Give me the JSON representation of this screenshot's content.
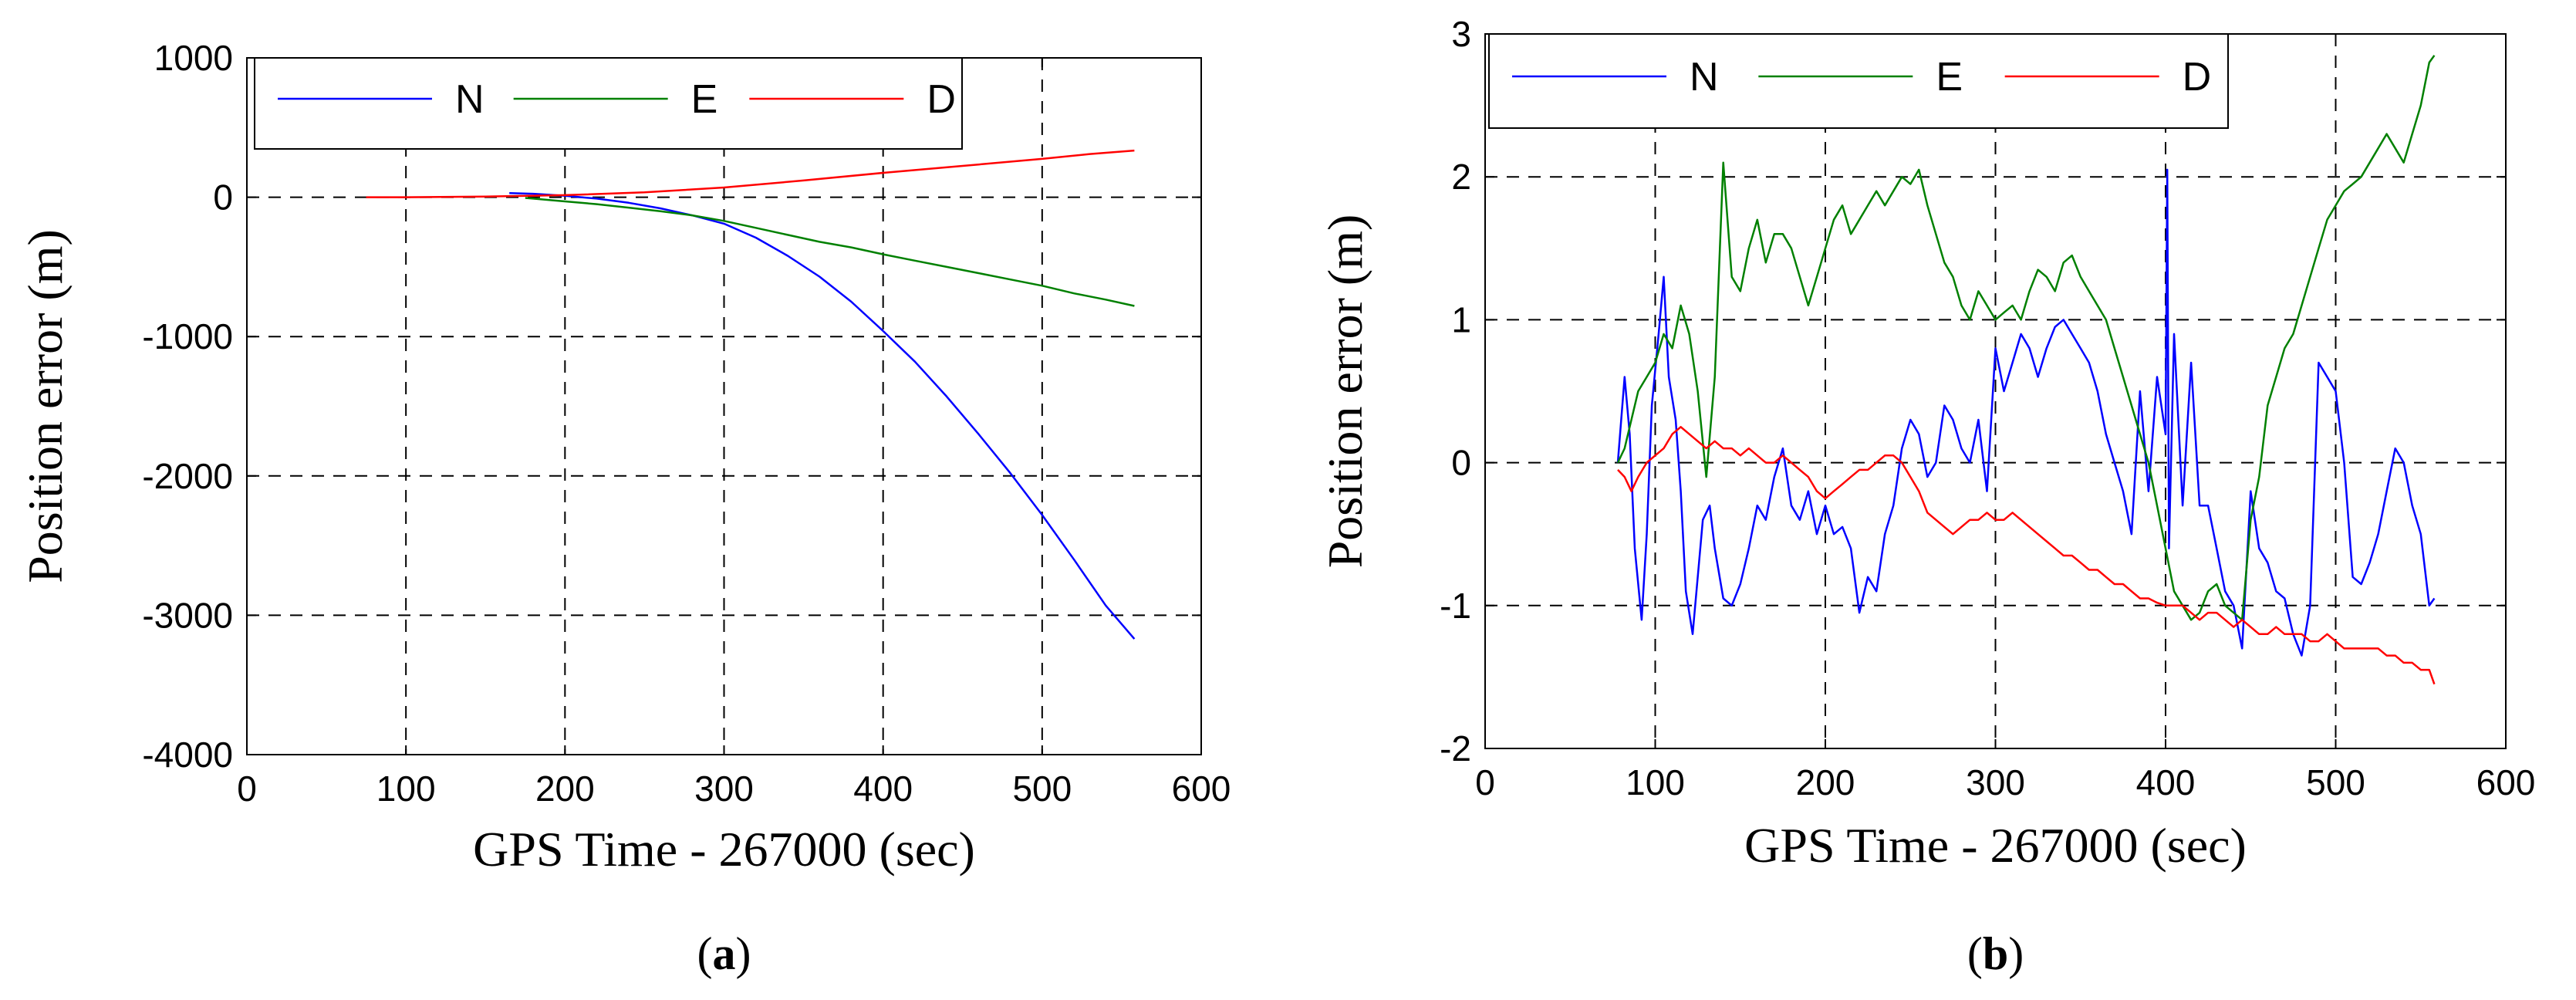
{
  "chart_data": [
    {
      "type": "line",
      "panel": "a",
      "xlabel": "GPS Time - 267000 (sec)",
      "ylabel": "Position error (m)",
      "xlim": [
        0,
        600
      ],
      "ylim": [
        -4000,
        1000
      ],
      "xticks": [
        0,
        100,
        200,
        300,
        400,
        500,
        600
      ],
      "yticks": [
        1000,
        0,
        -1000,
        -2000,
        -3000,
        -4000
      ],
      "grid": true,
      "legend_position": "top",
      "series": [
        {
          "name": "N",
          "color": "#0000ff",
          "x": [
            165,
            180,
            200,
            220,
            240,
            260,
            280,
            300,
            320,
            340,
            360,
            380,
            400,
            420,
            440,
            460,
            480,
            500,
            520,
            540,
            558
          ],
          "values": [
            30,
            25,
            10,
            -10,
            -40,
            -80,
            -130,
            -190,
            -290,
            -420,
            -570,
            -750,
            -960,
            -1180,
            -1430,
            -1700,
            -1980,
            -2280,
            -2600,
            -2930,
            -3170
          ]
        },
        {
          "name": "E",
          "color": "#008000",
          "x": [
            175,
            200,
            220,
            240,
            260,
            280,
            300,
            320,
            340,
            360,
            380,
            400,
            420,
            440,
            460,
            480,
            500,
            520,
            540,
            558
          ],
          "values": [
            -5,
            -30,
            -50,
            -75,
            -100,
            -130,
            -170,
            -220,
            -270,
            -320,
            -360,
            -410,
            -455,
            -500,
            -545,
            -590,
            -635,
            -690,
            -735,
            -780
          ]
        },
        {
          "name": "D",
          "color": "#ff0000",
          "x": [
            75,
            100,
            150,
            200,
            250,
            300,
            350,
            400,
            450,
            500,
            530,
            558
          ],
          "values": [
            0,
            0,
            5,
            15,
            35,
            70,
            120,
            175,
            225,
            275,
            310,
            335
          ]
        }
      ]
    },
    {
      "type": "line",
      "panel": "b",
      "xlabel": "GPS Time - 267000 (sec)",
      "ylabel": "Position error (m)",
      "xlim": [
        0,
        600
      ],
      "ylim": [
        -2,
        3
      ],
      "xticks": [
        0,
        100,
        200,
        300,
        400,
        500,
        600
      ],
      "yticks": [
        3,
        2,
        1,
        0,
        -1,
        -2
      ],
      "grid": true,
      "legend_position": "top",
      "series": [
        {
          "name": "N",
          "color": "#0000ff",
          "x": [
            78,
            82,
            85,
            88,
            92,
            95,
            98,
            102,
            105,
            108,
            112,
            115,
            118,
            122,
            125,
            128,
            132,
            135,
            140,
            145,
            150,
            155,
            160,
            165,
            170,
            175,
            180,
            185,
            190,
            195,
            200,
            205,
            210,
            215,
            220,
            225,
            230,
            235,
            240,
            245,
            250,
            255,
            260,
            265,
            270,
            275,
            280,
            285,
            290,
            295,
            300,
            305,
            310,
            315,
            320,
            325,
            330,
            335,
            340,
            345,
            350,
            355,
            360,
            365,
            370,
            375,
            380,
            385,
            390,
            395,
            400,
            401,
            402,
            405,
            410,
            415,
            420,
            425,
            430,
            435,
            440,
            445,
            450,
            455,
            460,
            465,
            470,
            475,
            480,
            485,
            490,
            495,
            500,
            505,
            510,
            515,
            520,
            525,
            530,
            535,
            540,
            545,
            550,
            555,
            558
          ],
          "values": [
            0.0,
            0.6,
            0.2,
            -0.6,
            -1.1,
            -0.5,
            0.4,
            0.9,
            1.3,
            0.6,
            0.3,
            -0.2,
            -0.9,
            -1.2,
            -0.8,
            -0.4,
            -0.3,
            -0.6,
            -0.95,
            -1.0,
            -0.85,
            -0.6,
            -0.3,
            -0.4,
            -0.1,
            0.1,
            -0.3,
            -0.4,
            -0.2,
            -0.5,
            -0.3,
            -0.5,
            -0.45,
            -0.6,
            -1.05,
            -0.8,
            -0.9,
            -0.5,
            -0.3,
            0.1,
            0.3,
            0.2,
            -0.1,
            0.0,
            0.4,
            0.3,
            0.1,
            0.0,
            0.3,
            -0.2,
            0.8,
            0.5,
            0.7,
            0.9,
            0.8,
            0.6,
            0.8,
            0.95,
            1.0,
            0.9,
            0.8,
            0.7,
            0.5,
            0.2,
            0.0,
            -0.2,
            -0.5,
            0.5,
            -0.2,
            0.6,
            0.2,
            2.05,
            -0.6,
            0.9,
            -0.3,
            0.7,
            -0.3,
            -0.3,
            -0.6,
            -0.9,
            -1.0,
            -1.3,
            -0.2,
            -0.6,
            -0.7,
            -0.9,
            -0.95,
            -1.2,
            -1.35,
            -1.0,
            0.7,
            0.6,
            0.5,
            0.0,
            -0.8,
            -0.85,
            -0.7,
            -0.5,
            -0.2,
            0.1,
            0.0,
            -0.3,
            -0.5,
            -1.0,
            -0.95
          ]
        },
        {
          "name": "E",
          "color": "#008000",
          "x": [
            78,
            82,
            86,
            90,
            95,
            100,
            105,
            110,
            115,
            120,
            125,
            130,
            135,
            138,
            140,
            145,
            150,
            155,
            160,
            165,
            170,
            175,
            180,
            185,
            190,
            195,
            200,
            205,
            210,
            215,
            220,
            225,
            230,
            235,
            240,
            245,
            250,
            255,
            260,
            265,
            270,
            275,
            280,
            285,
            290,
            295,
            300,
            305,
            310,
            315,
            320,
            325,
            330,
            335,
            340,
            345,
            350,
            355,
            360,
            365,
            370,
            375,
            380,
            385,
            390,
            395,
            400,
            405,
            410,
            415,
            420,
            425,
            430,
            435,
            440,
            445,
            450,
            455,
            460,
            465,
            470,
            475,
            480,
            485,
            490,
            495,
            500,
            505,
            510,
            515,
            520,
            525,
            530,
            535,
            540,
            545,
            550,
            555,
            558
          ],
          "values": [
            0.0,
            0.1,
            0.3,
            0.5,
            0.6,
            0.7,
            0.9,
            0.8,
            1.1,
            0.9,
            0.5,
            -0.1,
            0.6,
            1.5,
            2.1,
            1.3,
            1.2,
            1.5,
            1.7,
            1.4,
            1.6,
            1.6,
            1.5,
            1.3,
            1.1,
            1.3,
            1.5,
            1.7,
            1.8,
            1.6,
            1.7,
            1.8,
            1.9,
            1.8,
            1.9,
            2.0,
            1.95,
            2.05,
            1.8,
            1.6,
            1.4,
            1.3,
            1.1,
            1.0,
            1.2,
            1.1,
            1.0,
            1.05,
            1.1,
            1.0,
            1.2,
            1.35,
            1.3,
            1.2,
            1.4,
            1.45,
            1.3,
            1.2,
            1.1,
            1.0,
            0.8,
            0.6,
            0.4,
            0.2,
            0.0,
            -0.3,
            -0.6,
            -0.9,
            -1.0,
            -1.1,
            -1.05,
            -0.9,
            -0.85,
            -1.0,
            -1.05,
            -1.1,
            -0.4,
            -0.1,
            0.4,
            0.6,
            0.8,
            0.9,
            1.1,
            1.3,
            1.5,
            1.7,
            1.8,
            1.9,
            1.95,
            2.0,
            2.1,
            2.2,
            2.3,
            2.2,
            2.1,
            2.3,
            2.5,
            2.8,
            2.85
          ]
        },
        {
          "name": "D",
          "color": "#ff0000",
          "x": [
            78,
            82,
            86,
            90,
            95,
            100,
            105,
            110,
            115,
            120,
            125,
            130,
            135,
            140,
            145,
            150,
            155,
            160,
            165,
            170,
            175,
            180,
            185,
            190,
            195,
            200,
            205,
            210,
            215,
            220,
            225,
            230,
            235,
            240,
            245,
            250,
            255,
            260,
            265,
            270,
            275,
            280,
            285,
            290,
            295,
            300,
            305,
            310,
            315,
            320,
            325,
            330,
            335,
            340,
            345,
            350,
            355,
            360,
            365,
            370,
            375,
            380,
            385,
            390,
            395,
            400,
            405,
            410,
            415,
            420,
            425,
            430,
            435,
            440,
            445,
            450,
            455,
            460,
            465,
            470,
            475,
            480,
            485,
            490,
            495,
            500,
            505,
            510,
            515,
            520,
            525,
            530,
            535,
            540,
            545,
            550,
            555,
            558
          ],
          "values": [
            -0.05,
            -0.1,
            -0.2,
            -0.1,
            0.0,
            0.05,
            0.1,
            0.2,
            0.25,
            0.2,
            0.15,
            0.1,
            0.15,
            0.1,
            0.1,
            0.05,
            0.1,
            0.05,
            0.0,
            0.0,
            0.05,
            0.0,
            -0.05,
            -0.1,
            -0.2,
            -0.25,
            -0.2,
            -0.15,
            -0.1,
            -0.05,
            -0.05,
            0.0,
            0.05,
            0.05,
            0.0,
            -0.1,
            -0.2,
            -0.35,
            -0.4,
            -0.45,
            -0.5,
            -0.45,
            -0.4,
            -0.4,
            -0.35,
            -0.4,
            -0.4,
            -0.35,
            -0.4,
            -0.45,
            -0.5,
            -0.55,
            -0.6,
            -0.65,
            -0.65,
            -0.7,
            -0.75,
            -0.75,
            -0.8,
            -0.85,
            -0.85,
            -0.9,
            -0.95,
            -0.95,
            -0.98,
            -1.0,
            -1.0,
            -1.0,
            -1.05,
            -1.1,
            -1.05,
            -1.05,
            -1.1,
            -1.15,
            -1.1,
            -1.15,
            -1.2,
            -1.2,
            -1.15,
            -1.2,
            -1.2,
            -1.2,
            -1.25,
            -1.25,
            -1.2,
            -1.25,
            -1.3,
            -1.3,
            -1.3,
            -1.3,
            -1.3,
            -1.35,
            -1.35,
            -1.4,
            -1.4,
            -1.45,
            -1.45,
            -1.55
          ]
        }
      ]
    }
  ],
  "captions": {
    "a": {
      "open": "(",
      "letter": "a",
      "close": ")"
    },
    "b": {
      "open": "(",
      "letter": "b",
      "close": ")"
    }
  }
}
